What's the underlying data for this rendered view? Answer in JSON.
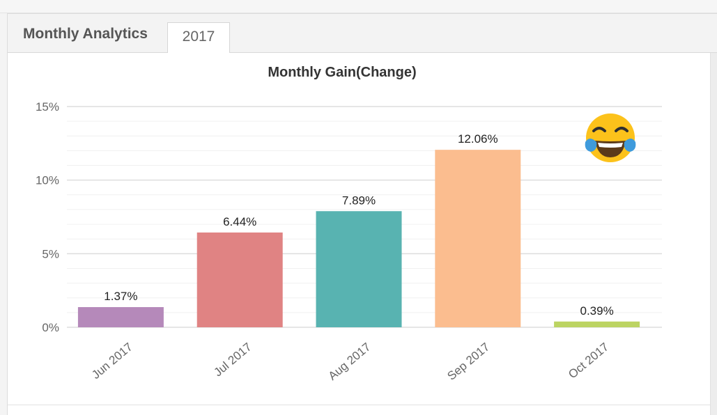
{
  "panel": {
    "title": "Monthly Analytics",
    "tabs": [
      {
        "label": "2017",
        "active": true
      }
    ]
  },
  "chart_data": {
    "type": "bar",
    "title": "Monthly Gain(Change)",
    "xlabel": "",
    "ylabel": "",
    "categories": [
      "Jun 2017",
      "Jul 2017",
      "Aug 2017",
      "Sep 2017",
      "Oct 2017"
    ],
    "values": [
      1.37,
      6.44,
      7.89,
      12.06,
      0.39
    ],
    "value_labels": [
      "1.37%",
      "6.44%",
      "7.89%",
      "12.06%",
      "0.39%"
    ],
    "bar_colors": [
      "#b589ba",
      "#e08383",
      "#58b3b1",
      "#fbbd8f",
      "#bcd462"
    ],
    "ylim": [
      0,
      15
    ],
    "yticks": [
      0,
      5,
      10,
      15
    ],
    "ytick_labels": [
      "0%",
      "5%",
      "10%",
      "15%"
    ],
    "grid": true,
    "legend": "none"
  },
  "overlay": {
    "icon": "face-with-tears-of-joy-icon"
  }
}
